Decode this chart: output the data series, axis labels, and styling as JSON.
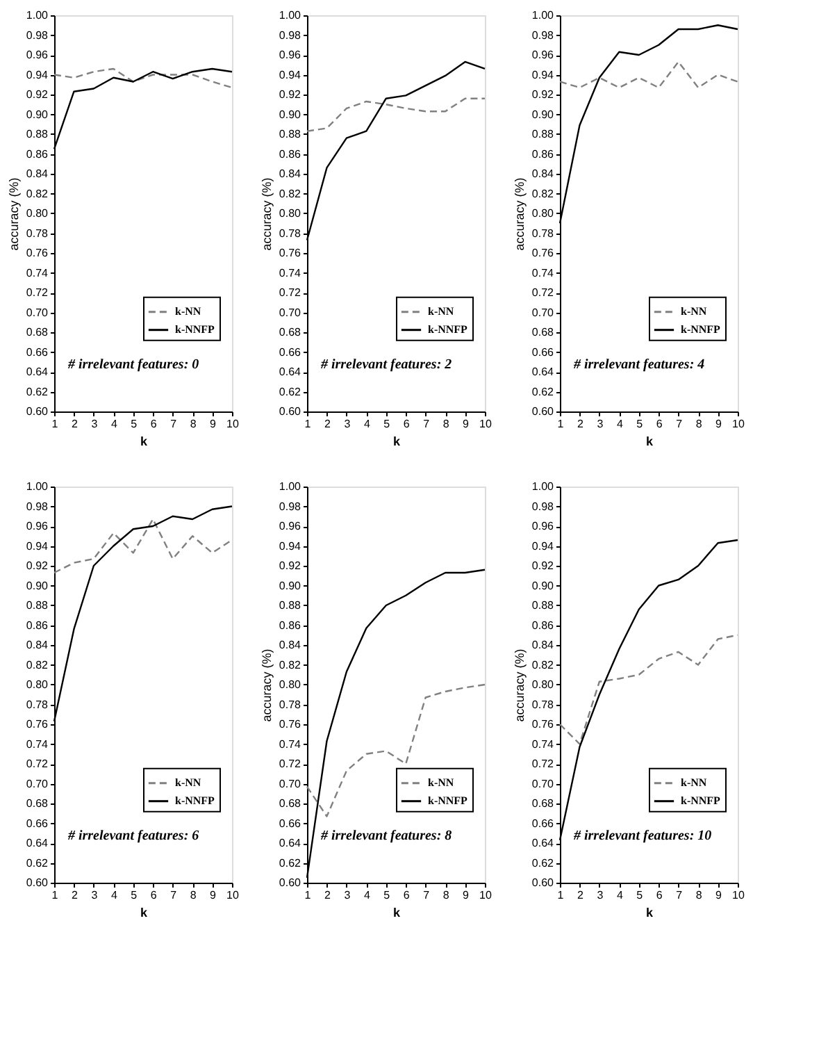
{
  "chart_data": [
    {
      "type": "line",
      "xlabel": "k",
      "ylabel": "accuracy (%)",
      "annotations": [
        "# irrelevant features: 0"
      ],
      "x": [
        1,
        2,
        3,
        4,
        5,
        6,
        7,
        8,
        9,
        10
      ],
      "xlim": [
        1,
        10
      ],
      "xticks": [
        1,
        2,
        3,
        4,
        5,
        6,
        7,
        8,
        9,
        10
      ],
      "ylim": [
        0.6,
        1.0
      ],
      "yticks": [
        {
          "value": 0.6,
          "label": "0.60"
        },
        0.62,
        0.64,
        0.66,
        0.68,
        {
          "value": 0.7,
          "label": "0.70"
        },
        0.72,
        0.74,
        0.76,
        0.78,
        {
          "value": 0.8,
          "label": "0.80"
        },
        0.82,
        0.84,
        0.86,
        0.88,
        {
          "value": 0.9,
          "label": "0.90"
        },
        0.92,
        0.94,
        0.96,
        0.98,
        {
          "value": 1.0,
          "label": "1.00"
        }
      ],
      "grid": false,
      "legend": "bottom right",
      "marker": "none",
      "series": [
        {
          "name": "k-NN",
          "color": "#808080",
          "line_style": "dashed",
          "values": [
            0.94,
            0.937,
            0.943,
            0.946,
            0.933,
            0.94,
            0.94,
            0.94,
            0.933,
            0.927
          ]
        },
        {
          "name": "k-NNFP",
          "color": "#000000",
          "line_style": "solid",
          "values": [
            0.865,
            0.923,
            0.926,
            0.937,
            0.933,
            0.943,
            0.936,
            0.943,
            0.946,
            0.943
          ]
        }
      ]
    },
    {
      "type": "line",
      "xlabel": "k",
      "ylabel": "accuracy (%)",
      "annotations": [
        "# irrelevant features: 2"
      ],
      "x": [
        1,
        2,
        3,
        4,
        5,
        6,
        7,
        8,
        9,
        10
      ],
      "xlim": [
        1,
        10
      ],
      "xticks": [
        1,
        2,
        3,
        4,
        5,
        6,
        7,
        8,
        9,
        10
      ],
      "ylim": [
        0.6,
        1.0
      ],
      "yticks": [
        {
          "value": 0.6,
          "label": "0.60"
        },
        0.62,
        0.64,
        0.66,
        0.68,
        {
          "value": 0.7,
          "label": "0.70"
        },
        0.72,
        0.74,
        0.76,
        0.78,
        {
          "value": 0.8,
          "label": "0.80"
        },
        0.82,
        0.84,
        0.86,
        0.88,
        {
          "value": 0.9,
          "label": "0.90"
        },
        0.92,
        0.94,
        0.96,
        0.98,
        {
          "value": 1.0,
          "label": "1.00"
        }
      ],
      "grid": false,
      "legend": "bottom right",
      "marker": "none",
      "series": [
        {
          "name": "k-NN",
          "color": "#808080",
          "line_style": "dashed",
          "values": [
            0.883,
            0.886,
            0.906,
            0.913,
            0.91,
            0.906,
            0.903,
            0.903,
            0.916,
            0.916
          ]
        },
        {
          "name": "k-NNFP",
          "color": "#000000",
          "line_style": "solid",
          "values": [
            0.773,
            0.846,
            0.876,
            0.883,
            0.916,
            0.919,
            0.929,
            0.939,
            0.953,
            0.946
          ]
        }
      ]
    },
    {
      "type": "line",
      "xlabel": "k",
      "ylabel": "accuracy (%)",
      "annotations": [
        "# irrelevant features: 4"
      ],
      "x": [
        1,
        2,
        3,
        4,
        5,
        6,
        7,
        8,
        9,
        10
      ],
      "xlim": [
        1,
        10
      ],
      "xticks": [
        1,
        2,
        3,
        4,
        5,
        6,
        7,
        8,
        9,
        10
      ],
      "ylim": [
        0.6,
        1.0
      ],
      "yticks": [
        {
          "value": 0.6,
          "label": "0.60"
        },
        0.62,
        0.64,
        0.66,
        0.68,
        {
          "value": 0.7,
          "label": "0.70"
        },
        0.72,
        0.74,
        0.76,
        0.78,
        {
          "value": 0.8,
          "label": "0.80"
        },
        0.82,
        0.84,
        0.86,
        0.88,
        {
          "value": 0.9,
          "label": "0.90"
        },
        0.92,
        0.94,
        0.96,
        0.98,
        {
          "value": 1.0,
          "label": "1.00"
        }
      ],
      "grid": false,
      "legend": "bottom right",
      "marker": "none",
      "series": [
        {
          "name": "k-NN",
          "color": "#808080",
          "line_style": "dashed",
          "values": [
            0.933,
            0.927,
            0.937,
            0.927,
            0.937,
            0.927,
            0.953,
            0.927,
            0.94,
            0.933
          ]
        },
        {
          "name": "k-NNFP",
          "color": "#000000",
          "line_style": "solid",
          "values": [
            0.79,
            0.889,
            0.937,
            0.963,
            0.96,
            0.97,
            0.986,
            0.986,
            0.99,
            0.986
          ]
        }
      ]
    },
    {
      "type": "line",
      "xlabel": "k",
      "annotations": [
        "# irrelevant features: 6"
      ],
      "x": [
        1,
        2,
        3,
        4,
        5,
        6,
        7,
        8,
        9,
        10
      ],
      "xlim": [
        1,
        10
      ],
      "xticks": [
        1,
        2,
        3,
        4,
        5,
        6,
        7,
        8,
        9,
        10
      ],
      "ylim": [
        0.6,
        1.0
      ],
      "yticks": [
        {
          "value": 0.6,
          "label": "0.60"
        },
        0.62,
        0.64,
        0.66,
        0.68,
        {
          "value": 0.7,
          "label": "0.70"
        },
        0.72,
        0.74,
        0.76,
        0.78,
        {
          "value": 0.8,
          "label": "0.80"
        },
        0.82,
        0.84,
        0.86,
        0.88,
        {
          "value": 0.9,
          "label": "0.90"
        },
        0.92,
        0.94,
        0.96,
        0.98,
        {
          "value": 1.0,
          "label": "1.00"
        }
      ],
      "grid": false,
      "legend": "bottom right",
      "marker": "none",
      "series": [
        {
          "name": "k-NN",
          "color": "#808080",
          "line_style": "dashed",
          "values": [
            0.913,
            0.923,
            0.927,
            0.953,
            0.933,
            0.967,
            0.927,
            0.95,
            0.933,
            0.946
          ]
        },
        {
          "name": "k-NNFP",
          "color": "#000000",
          "line_style": "solid",
          "values": [
            0.763,
            0.856,
            0.92,
            0.94,
            0.957,
            0.96,
            0.97,
            0.967,
            0.977,
            0.98
          ]
        }
      ]
    },
    {
      "type": "line",
      "xlabel": "k",
      "ylabel": "accuracy (%)",
      "annotations": [
        "# irrelevant features: 8"
      ],
      "x": [
        1,
        2,
        3,
        4,
        5,
        6,
        7,
        8,
        9,
        10
      ],
      "xlim": [
        1,
        10
      ],
      "xticks": [
        1,
        2,
        3,
        4,
        5,
        6,
        7,
        8,
        9,
        10
      ],
      "ylim": [
        0.6,
        1.0
      ],
      "yticks": [
        {
          "value": 0.6,
          "label": "0.60"
        },
        0.62,
        0.64,
        0.66,
        0.68,
        {
          "value": 0.7,
          "label": "0.70"
        },
        0.72,
        0.74,
        0.76,
        0.78,
        {
          "value": 0.8,
          "label": "0.80"
        },
        0.82,
        0.84,
        0.86,
        0.88,
        {
          "value": 0.9,
          "label": "0.90"
        },
        0.92,
        0.94,
        0.96,
        0.98,
        {
          "value": 1.0,
          "label": "1.00"
        }
      ],
      "grid": false,
      "legend": "bottom right",
      "marker": "none",
      "series": [
        {
          "name": "k-NN",
          "color": "#808080",
          "line_style": "dashed",
          "values": [
            0.697,
            0.667,
            0.713,
            0.73,
            0.733,
            0.72,
            0.787,
            0.793,
            0.797,
            0.8
          ]
        },
        {
          "name": "k-NNFP",
          "color": "#000000",
          "line_style": "solid",
          "values": [
            0.605,
            0.743,
            0.813,
            0.857,
            0.88,
            0.89,
            0.903,
            0.913,
            0.913,
            0.916
          ]
        }
      ]
    },
    {
      "type": "line",
      "xlabel": "k",
      "ylabel": "accuracy (%)",
      "annotations": [
        "# irrelevant features: 10"
      ],
      "x": [
        1,
        2,
        3,
        4,
        5,
        6,
        7,
        8,
        9,
        10
      ],
      "xlim": [
        1,
        10
      ],
      "xticks": [
        1,
        2,
        3,
        4,
        5,
        6,
        7,
        8,
        9,
        10
      ],
      "ylim": [
        0.6,
        1.0
      ],
      "yticks": [
        {
          "value": 0.6,
          "label": "0.60"
        },
        0.62,
        0.64,
        0.66,
        0.68,
        {
          "value": 0.7,
          "label": "0.70"
        },
        0.72,
        0.74,
        0.76,
        0.78,
        {
          "value": 0.8,
          "label": "0.80"
        },
        0.82,
        0.84,
        0.86,
        0.88,
        {
          "value": 0.9,
          "label": "0.90"
        },
        0.92,
        0.94,
        0.96,
        0.98,
        {
          "value": 1.0,
          "label": "1.00"
        }
      ],
      "grid": false,
      "legend": "bottom right",
      "marker": "none",
      "series": [
        {
          "name": "k-NN",
          "color": "#808080",
          "line_style": "dashed",
          "values": [
            0.76,
            0.74,
            0.803,
            0.806,
            0.81,
            0.826,
            0.833,
            0.82,
            0.846,
            0.85
          ]
        },
        {
          "name": "k-NNFP",
          "color": "#000000",
          "line_style": "solid",
          "values": [
            0.643,
            0.737,
            0.79,
            0.836,
            0.876,
            0.9,
            0.906,
            0.92,
            0.943,
            0.946
          ]
        }
      ]
    }
  ]
}
